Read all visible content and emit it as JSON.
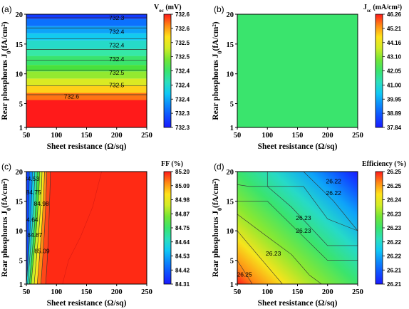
{
  "chart_data": [
    {
      "panel": "(a)",
      "type": "heatmap",
      "cbar_title": "Voc (mV)",
      "cbar_title_main": "V",
      "cbar_title_sub": "oc",
      "cbar_title_rest": " (mV)",
      "xlabel": "Sheet resistance (Ω/sq)",
      "ylabel": "Rear phosphorus J0(fA/cm²)",
      "ylabel_main": "Rear phosphorus J",
      "ylabel_sub": "0",
      "ylabel_rest": "(fA/cm²)",
      "xlim": [
        50,
        250
      ],
      "ylim": [
        1,
        20
      ],
      "xticks": [
        "50",
        "100",
        "150",
        "200",
        "250"
      ],
      "yticks": [
        "1",
        "5",
        "10",
        "15",
        "20"
      ],
      "cbar_range": [
        732.3,
        732.6
      ],
      "cbar_ticks": [
        "732.6",
        "732.6",
        "732.5",
        "732.5",
        "732.4",
        "732.4",
        "732.4",
        "732.3",
        "732.3"
      ],
      "contour_labels": [
        {
          "text": "732.3",
          "x": 200,
          "y": 19.4
        },
        {
          "text": "732.4",
          "x": 200,
          "y": 17.1
        },
        {
          "text": "732.4",
          "x": 200,
          "y": 14.8
        },
        {
          "text": "732.4",
          "x": 200,
          "y": 12.5
        },
        {
          "text": "732.5",
          "x": 200,
          "y": 10.2
        },
        {
          "text": "732.5",
          "x": 200,
          "y": 8.1
        },
        {
          "text": "732.6",
          "x": 125,
          "y": 6.2
        }
      ]
    },
    {
      "panel": "(b)",
      "type": "heatmap",
      "cbar_title": "Jsc (mA/cm²)",
      "cbar_title_main": "J",
      "cbar_title_sub": "sc",
      "cbar_title_rest": " (mA/cm²)",
      "xlabel": "Sheet resistance (Ω/sq)",
      "ylabel": "Rear phosphorus J0(fA/cm²)",
      "ylabel_main": "Rear phosphorus J",
      "ylabel_sub": "0",
      "ylabel_rest": "(fA/cm²)",
      "xlim": [
        50,
        250
      ],
      "ylim": [
        1,
        20
      ],
      "xticks": [
        "50",
        "100",
        "150",
        "200",
        "250"
      ],
      "yticks": [
        "1",
        "5",
        "10",
        "15",
        "20"
      ],
      "cbar_range": [
        37.84,
        46.26
      ],
      "cbar_ticks": [
        "46.26",
        "45.21",
        "44.16",
        "43.10",
        "42.05",
        "41.00",
        "39.95",
        "38.89",
        "37.84"
      ],
      "uniform_value": 42.05
    },
    {
      "panel": "(c)",
      "type": "heatmap",
      "cbar_title": "FF (%)",
      "xlabel": "Sheet resistance (Ω/sq)",
      "ylabel": "Rear phosphorus J0(fA/cm²)",
      "ylabel_main": "Rear phosphorus J",
      "ylabel_sub": "0",
      "ylabel_rest": "(fA/cm²)",
      "xlim": [
        50,
        250
      ],
      "ylim": [
        1,
        20
      ],
      "xticks": [
        "50",
        "100",
        "150",
        "200",
        "250"
      ],
      "yticks": [
        "1",
        "5",
        "10",
        "15",
        "20"
      ],
      "cbar_range": [
        84.31,
        85.2
      ],
      "cbar_ticks": [
        "85.20",
        "85.09",
        "84.98",
        "84.87",
        "84.75",
        "84.64",
        "84.53",
        "84.42",
        "84.31"
      ],
      "contour_labels": [
        {
          "text": "84.53",
          "x": 59,
          "y": 18.8
        },
        {
          "text": "84.75",
          "x": 62,
          "y": 16.5
        },
        {
          "text": "84.98",
          "x": 75,
          "y": 14.6
        },
        {
          "text": "84.64",
          "x": 57,
          "y": 11.9
        },
        {
          "text": "84.87",
          "x": 64,
          "y": 9.3
        },
        {
          "text": "85.09",
          "x": 76,
          "y": 6.6
        }
      ]
    },
    {
      "panel": "(d)",
      "type": "heatmap",
      "cbar_title": "Efficiency (%)",
      "xlabel": "Sheet resistance (Ω/sq)",
      "ylabel": "Rear phosphorus J0(fA/cm²)",
      "ylabel_main": "Rear phosphorus J",
      "ylabel_sub": "0",
      "ylabel_rest": "(fA/cm²)",
      "xlim": [
        50,
        250
      ],
      "ylim": [
        1,
        20
      ],
      "xticks": [
        "50",
        "100",
        "150",
        "200",
        "250"
      ],
      "yticks": [
        "1",
        "5",
        "10",
        "15",
        "20"
      ],
      "cbar_range": [
        26.21,
        26.25
      ],
      "cbar_ticks": [
        "26.25",
        "26.25",
        "26.24",
        "26.23",
        "26.23",
        "26.22",
        "26.22",
        "26.21",
        "26.21"
      ],
      "contour_labels": [
        {
          "text": "26.22",
          "x": 210,
          "y": 18.4
        },
        {
          "text": "26.22",
          "x": 210,
          "y": 16.4
        },
        {
          "text": "26.23",
          "x": 160,
          "y": 12.2
        },
        {
          "text": "26.23",
          "x": 160,
          "y": 10.0
        },
        {
          "text": "26.23",
          "x": 110,
          "y": 6.2
        },
        {
          "text": "26.25",
          "x": 62,
          "y": 2.6
        }
      ]
    }
  ]
}
